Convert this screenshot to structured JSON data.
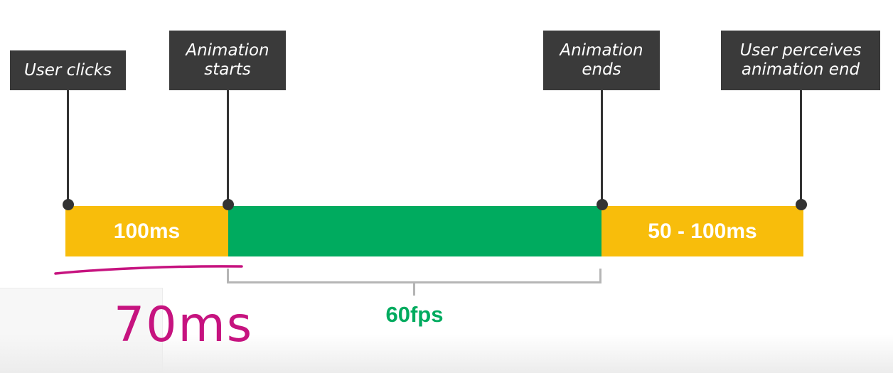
{
  "events": [
    {
      "label": "User clicks"
    },
    {
      "label": "Animation starts"
    },
    {
      "label": "Animation ends"
    },
    {
      "label": "User perceives animation end"
    }
  ],
  "segments": [
    {
      "label": "100ms",
      "color": "#f8bd0b"
    },
    {
      "label": "",
      "color": "#00ab5f"
    },
    {
      "label": "50 - 100ms",
      "color": "#f8bd0b"
    }
  ],
  "bracket": {
    "label": "60fps",
    "color": "#00ab5f"
  },
  "annotation": {
    "text": "70ms",
    "color": "#c6137f"
  },
  "colors": {
    "label_bg": "#3a3a3a",
    "stem": "#333333",
    "bracket_line": "#b5b5b5"
  }
}
